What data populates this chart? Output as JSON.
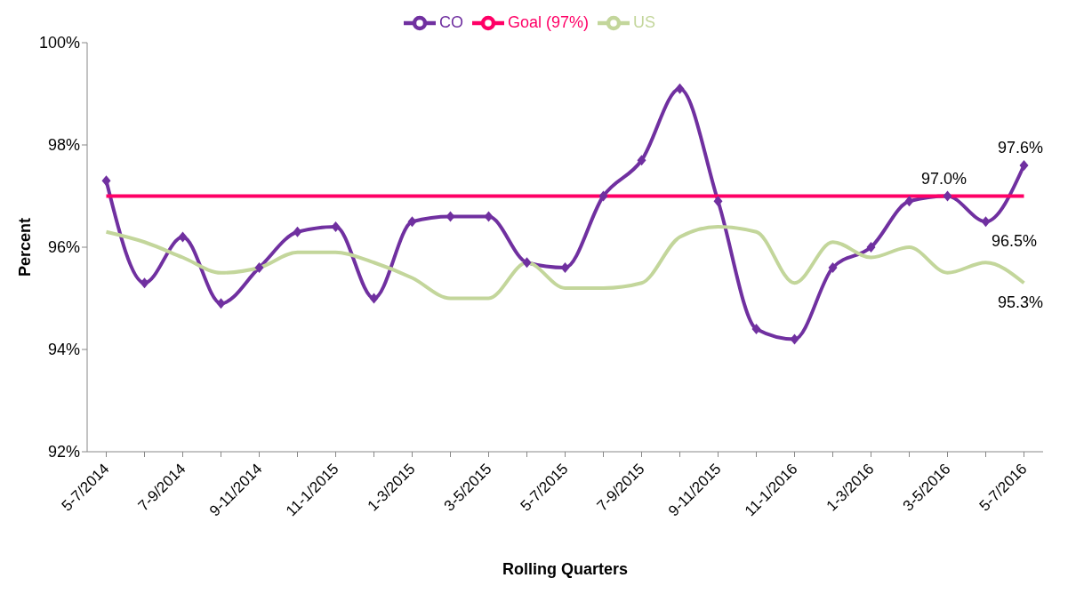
{
  "chart_data": {
    "type": "line",
    "xlabel": "Rolling Quarters",
    "ylabel": "Percent",
    "categories": [
      "5-7/2014",
      null,
      "7-9/2014",
      null,
      "9-11/2014",
      null,
      "11-1/2015",
      null,
      "1-3/2015",
      null,
      "3-5/2015",
      null,
      "5-7/2015",
      null,
      "7-9/2015",
      null,
      "9-11/2015",
      null,
      "11-1/2016",
      null,
      "1-3/2016",
      null,
      "3-5/2016",
      null,
      "5-7/2016"
    ],
    "series": [
      {
        "name": "CO",
        "color": "#7030a0",
        "marker": "diamond",
        "values": [
          97.3,
          95.3,
          96.2,
          94.9,
          95.6,
          96.3,
          96.4,
          95.0,
          96.5,
          96.6,
          96.6,
          95.7,
          95.6,
          97.0,
          97.7,
          99.1,
          96.9,
          94.4,
          94.2,
          95.6,
          96.0,
          96.9,
          97.0,
          96.5,
          97.6
        ],
        "value_labels": [
          null,
          null,
          null,
          null,
          null,
          null,
          null,
          null,
          null,
          null,
          null,
          null,
          null,
          null,
          null,
          null,
          null,
          null,
          null,
          null,
          null,
          null,
          "97.0%",
          "96.5%",
          "97.6%"
        ]
      },
      {
        "name": "US",
        "color": "#c3d69b",
        "marker": "none",
        "values": [
          96.3,
          96.1,
          95.8,
          95.5,
          95.6,
          95.9,
          95.9,
          95.7,
          95.4,
          95.0,
          95.0,
          95.7,
          95.2,
          95.2,
          95.3,
          96.2,
          96.4,
          96.3,
          95.3,
          96.1,
          95.8,
          96.0,
          95.5,
          95.7,
          95.3
        ],
        "value_labels": [
          null,
          null,
          null,
          null,
          null,
          null,
          null,
          null,
          null,
          null,
          null,
          null,
          null,
          null,
          null,
          null,
          null,
          null,
          null,
          null,
          null,
          null,
          null,
          null,
          "95.3%"
        ]
      },
      {
        "name": "Goal (97%)",
        "color": "#ff0066",
        "marker": "none",
        "values": [
          97,
          97,
          97,
          97,
          97,
          97,
          97,
          97,
          97,
          97,
          97,
          97,
          97,
          97,
          97,
          97,
          97,
          97,
          97,
          97,
          97,
          97,
          97,
          97,
          97
        ]
      }
    ],
    "ylim": [
      92,
      100
    ],
    "yticks": [
      {
        "value": 92,
        "label": "92%"
      },
      {
        "value": 94,
        "label": "94%"
      },
      {
        "value": 96,
        "label": "96%"
      },
      {
        "value": 98,
        "label": "98%"
      },
      {
        "value": 100,
        "label": "100%"
      }
    ],
    "grid": false,
    "legend": "top",
    "line_style": "solid"
  }
}
